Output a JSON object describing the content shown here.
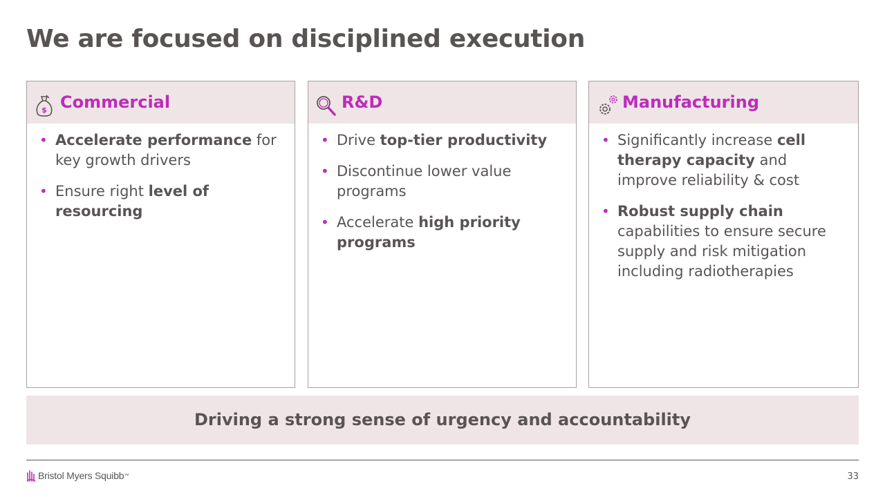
{
  "slide": {
    "title": "We are focused on disciplined execution",
    "page_number": "33"
  },
  "cards": [
    {
      "title": "Commercial",
      "icon": "money-bag-icon",
      "bullets": [
        {
          "parts": [
            {
              "text": "Accelerate performance",
              "bold": true
            },
            {
              "text": " for key growth drivers",
              "bold": false
            }
          ]
        },
        {
          "parts": [
            {
              "text": "Ensure right ",
              "bold": false
            },
            {
              "text": "level of resourcing",
              "bold": true
            }
          ]
        }
      ]
    },
    {
      "title": "R&D",
      "icon": "magnifier-icon",
      "bullets": [
        {
          "parts": [
            {
              "text": "Drive ",
              "bold": false
            },
            {
              "text": "top-tier productivity",
              "bold": true
            }
          ]
        },
        {
          "parts": [
            {
              "text": "Discontinue lower value programs",
              "bold": false
            }
          ]
        },
        {
          "parts": [
            {
              "text": "Accelerate ",
              "bold": false
            },
            {
              "text": "high priority programs",
              "bold": true
            }
          ]
        }
      ]
    },
    {
      "title": "Manufacturing",
      "icon": "gears-icon",
      "bullets": [
        {
          "parts": [
            {
              "text": "Significantly increase ",
              "bold": false
            },
            {
              "text": "cell therapy capacity",
              "bold": true
            },
            {
              "text": " and improve reliability & cost",
              "bold": false
            }
          ]
        },
        {
          "parts": [
            {
              "text": "Robust supply chain",
              "bold": true
            },
            {
              "text": " capabilities to ensure secure supply and risk mitigation including radiotherapies",
              "bold": false
            }
          ]
        }
      ]
    }
  ],
  "banner": {
    "text": "Driving a strong sense of urgency and accountability"
  },
  "footer": {
    "logo_text": "Bristol Myers Squibb",
    "logo_mark": "™"
  },
  "colors": {
    "accent": "#be2bbb",
    "text": "#595454",
    "header_bg": "#efe5e6"
  }
}
